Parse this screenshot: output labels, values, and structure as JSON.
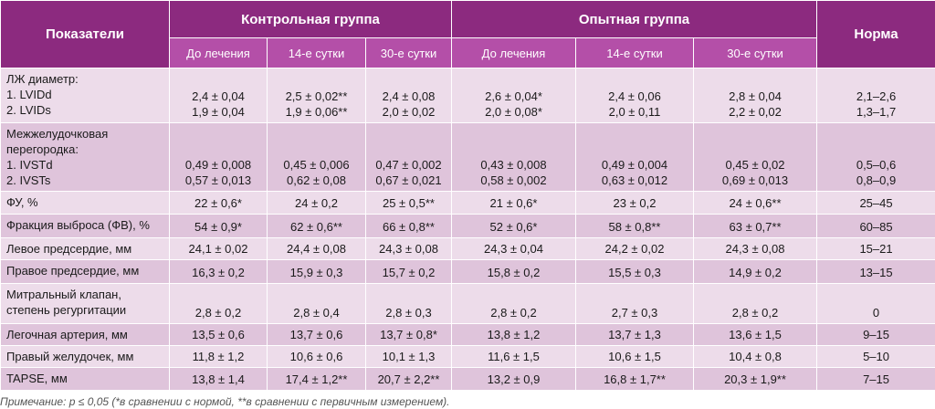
{
  "header": {
    "col_indicators": "Показатели",
    "group_control": "Контрольная группа",
    "group_experimental": "Опытная группа",
    "col_norm": "Норма",
    "sub": [
      "До лечения",
      "14-е сутки",
      "30-е сутки",
      "До лечения",
      "14-е сутки",
      "30-е сутки"
    ]
  },
  "rows": [
    {
      "label": "ЛЖ диаметр:\n1. LVIDd\n2. LVIDs",
      "values": [
        "2,4 ± 0,04\n1,9 ± 0,04",
        "2,5 ± 0,02**\n1,9 ± 0,06**",
        "2,4 ± 0,08\n2,0 ± 0,02",
        "2,6 ± 0,04*\n2,0 ± 0,08*",
        "2,4 ± 0,06\n2,0 ± 0,11",
        "2,8 ± 0,04\n2,2 ± 0,02"
      ],
      "norm": "2,1–2,6\n1,3–1,7"
    },
    {
      "label": "Межжелудочковая\nперегородка:\n1. IVSTd\n2. IVSTs",
      "values": [
        "0,49 ± 0,008\n0,57 ± 0,013",
        "0,45 ± 0,006\n0,62 ± 0,08",
        "0,47 ± 0,002\n0,67 ± 0,021",
        "0,43 ± 0,008\n0,58 ± 0,002",
        "0,49 ± 0,004\n0,63 ± 0,012",
        "0,45 ± 0,02\n0,69 ± 0,013"
      ],
      "norm": "0,5–0,6\n0,8–0,9"
    },
    {
      "label": "ФУ, %",
      "values": [
        "22 ± 0,6*",
        "24 ± 0,2",
        "25 ± 0,5**",
        "21 ± 0,6*",
        "23 ± 0,2",
        "24 ± 0,6**"
      ],
      "norm": "25–45"
    },
    {
      "label": "Фракция выброса (ФВ), %",
      "values": [
        "54 ± 0,9*",
        "62 ± 0,6**",
        "66 ± 0,8**",
        "52 ± 0,6*",
        "58 ± 0,8**",
        "63 ± 0,7**"
      ],
      "norm": "60–85"
    },
    {
      "label": "Левое предсердие, мм",
      "values": [
        "24,1 ± 0,02",
        "24,4 ± 0,08",
        "24,3 ± 0,08",
        "24,3 ± 0,04",
        "24,2 ± 0,02",
        "24,3 ± 0,08"
      ],
      "norm": "15–21"
    },
    {
      "label": "Правое предсердие, мм",
      "values": [
        "16,3 ± 0,2",
        "15,9 ± 0,3",
        "15,7 ± 0,2",
        "15,8 ± 0,2",
        "15,5 ± 0,3",
        "14,9 ± 0,2"
      ],
      "norm": "13–15"
    },
    {
      "label": "Митральный клапан,\nстепень регургитации",
      "values": [
        "2,8 ± 0,2",
        "2,8 ± 0,4",
        "2,8 ± 0,3",
        "2,8 ± 0,2",
        "2,7 ± 0,3",
        "2,8 ± 0,2"
      ],
      "norm": "0"
    },
    {
      "label": "Легочная артерия, мм",
      "values": [
        "13,5 ± 0,6",
        "13,7 ± 0,6",
        "13,7 ± 0,8*",
        "13,8 ± 1,2",
        "13,7 ± 1,3",
        "13,6 ± 1,5"
      ],
      "norm": "9–15"
    },
    {
      "label": "Правый желудочек, мм",
      "values": [
        "11,8 ± 1,2",
        "10,6 ± 0,6",
        "10,1 ± 1,3",
        "11,6 ± 1,5",
        "10,6 ± 1,5",
        "10,4 ± 0,8"
      ],
      "norm": "5–10"
    },
    {
      "label": "TAPSE, мм",
      "values": [
        "13,8 ± 1,4",
        "17,4 ± 1,2**",
        "20,7 ± 2,2**",
        "13,2 ± 0,9",
        "16,8 ± 1,7**",
        "20,3 ± 1,9**"
      ],
      "norm": "7–15"
    }
  ],
  "note": "Примечание: р ≤ 0,05 (*в сравнении с нормой, **в сравнении с первичным измерением)."
}
